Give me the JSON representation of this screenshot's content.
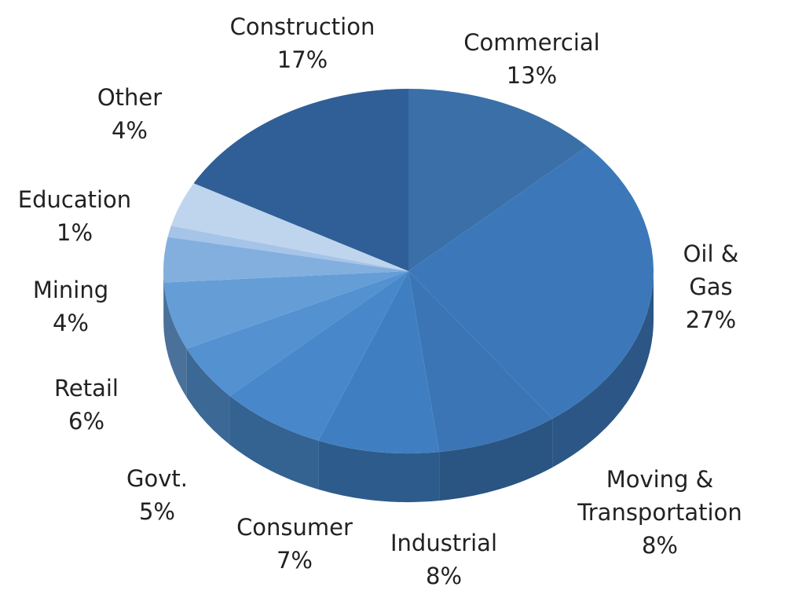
{
  "chart_data": {
    "type": "pie",
    "categories": [
      "Commercial",
      "Oil & Gas",
      "Moving & Transportation",
      "Industrial",
      "Consumer",
      "Govt.",
      "Retail",
      "Mining",
      "Education",
      "Other",
      "Construction"
    ],
    "values": [
      13,
      27,
      8,
      8,
      7,
      5,
      6,
      4,
      1,
      4,
      17
    ],
    "value_labels": [
      "13%",
      "27%",
      "8%",
      "8%",
      "7%",
      "5%",
      "6%",
      "4%",
      "1%",
      "4%",
      "17%"
    ],
    "colors": [
      "#3a6fa8",
      "#3c78b9",
      "#3b75b5",
      "#3f7fc1",
      "#4888ca",
      "#5391d1",
      "#659dd6",
      "#82afde",
      "#a6c4e7",
      "#bfd5ee",
      "#2f5f96"
    ]
  }
}
